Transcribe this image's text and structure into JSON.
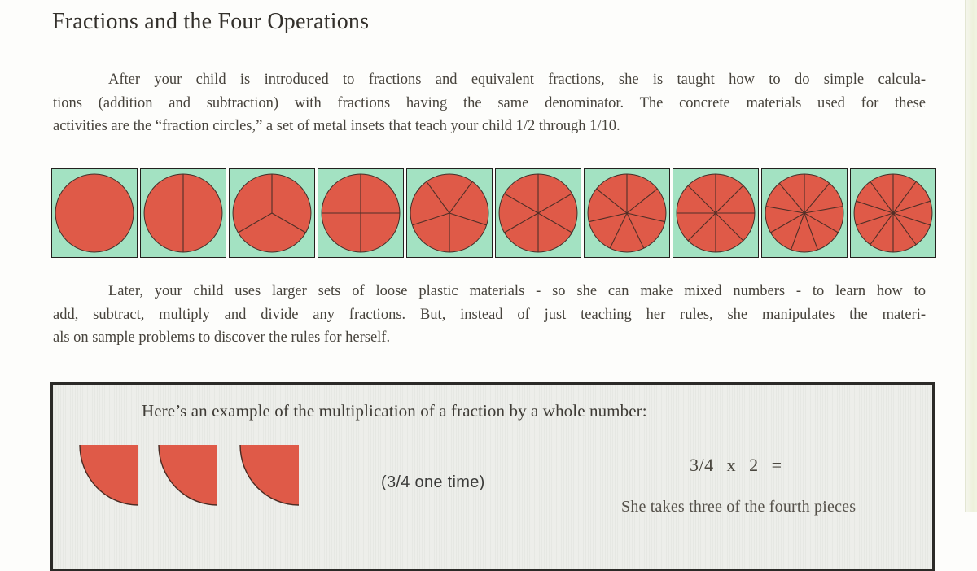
{
  "document": {
    "title": "Fractions and the Four Operations",
    "paragraph1": {
      "lines": [
        "After your child is introduced to fractions and equivalent fractions, she is taught how to do simple calcula-",
        "tions (addition and subtraction) with fractions having the same denominator. The concrete materials used for these",
        "activities are the “fraction circles,” a set of metal insets that teach your child 1/2 through 1/10."
      ]
    },
    "paragraph2": {
      "lines": [
        "Later, your child uses larger sets of loose plastic materials - so she can make mixed numbers - to learn how to",
        "add, subtract, multiply and divide any fractions.  But, instead of just teaching her rules, she manipulates the materi-",
        "als on sample problems to discover the rules for herself."
      ]
    }
  },
  "fraction_row": {
    "description": "Montessori fraction circles strip: red circles on green squares divided into 1 through 10 equal parts",
    "divisions": [
      1,
      2,
      3,
      4,
      5,
      6,
      7,
      8,
      9,
      10
    ],
    "spoke_offsets": {
      "2": 90,
      "3": 90,
      "4": 0,
      "5": 54,
      "6": 30,
      "7": 90,
      "8": 0,
      "9": 90,
      "10": 90
    }
  },
  "example_box": {
    "heading": "Here’s an example of the multiplication of a fraction by a whole number:",
    "pieces_count": 3,
    "piece_caption": "(3/4 one time)",
    "equation": "3/4 x 2 =",
    "continuation_text": "She takes three of the fourth pieces"
  },
  "colors": {
    "piece_red": "#df5a48",
    "tile_green": "#a3e2c2",
    "page_bg": "#fdfdfb",
    "box_bg": "#edeeea",
    "text": "#47433c"
  }
}
